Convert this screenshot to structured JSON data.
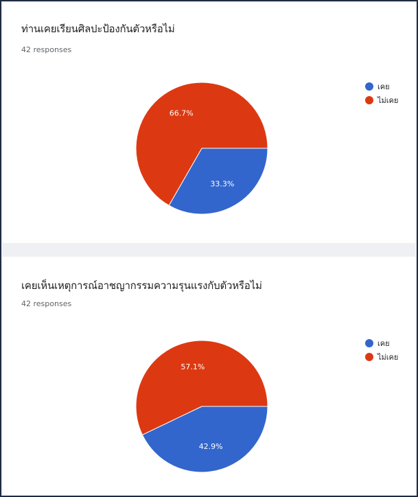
{
  "chart_data": [
    {
      "type": "pie",
      "title": "ท่านเคยเรียนศิลปะป้องกันตัวหรือไม่",
      "subtitle": "42 responses",
      "categories": [
        "เคย",
        "ไม่เคย"
      ],
      "values": [
        33.3,
        66.7
      ],
      "value_labels": [
        "33.3%",
        "66.7%"
      ],
      "colors": [
        "#3366cc",
        "#dc3912"
      ],
      "legend_position": "right"
    },
    {
      "type": "pie",
      "title": "เคยเห็นเหตุการณ์อาชญากรรมความรุนแรงกับตัวหรือไม่",
      "subtitle": "42 responses",
      "categories": [
        "เคย",
        "ไม่เคย"
      ],
      "values": [
        42.9,
        57.1
      ],
      "value_labels": [
        "42.9%",
        "57.1%"
      ],
      "colors": [
        "#3366cc",
        "#dc3912"
      ],
      "legend_position": "right"
    }
  ]
}
